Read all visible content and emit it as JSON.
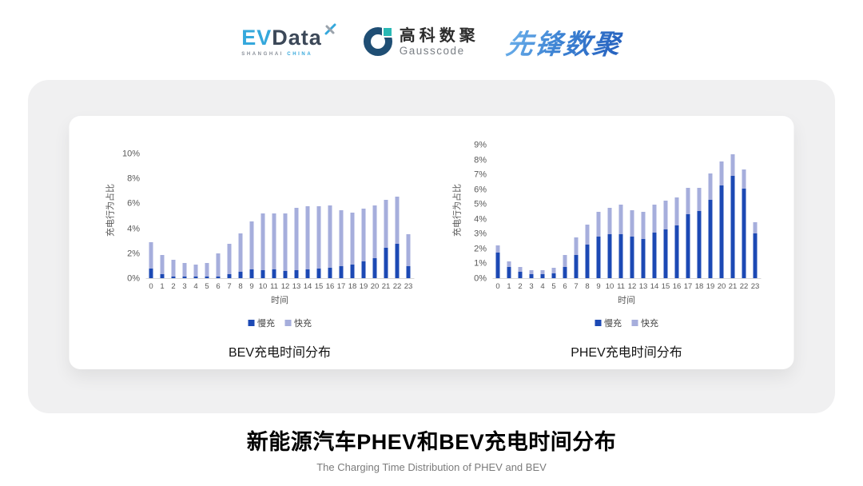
{
  "header": {
    "evdata": {
      "ev": "EV",
      "data": "Data",
      "sub_shanghai": "SHANGHAI ",
      "sub_china": "CHINA"
    },
    "gausscode": {
      "cn": "高科数聚",
      "en": "Gausscode"
    },
    "pioneer": {
      "text": "先锋数聚"
    }
  },
  "colors": {
    "slow_charge": "#1C49B4",
    "fast_charge": "#A6AEDC",
    "panel_background": "#F0F0F1",
    "axis_text": "#595959"
  },
  "chart_data": [
    {
      "type": "bar",
      "stacked": true,
      "title": "BEV充电时间分布",
      "xlabel": "时间",
      "ylabel": "充电行为占比",
      "ylim": [
        0,
        10
      ],
      "yticks": [
        "0%",
        "2%",
        "4%",
        "6%",
        "8%",
        "10%"
      ],
      "grid": false,
      "legend_position": "bottom",
      "categories": [
        "0",
        "1",
        "2",
        "3",
        "4",
        "5",
        "6",
        "7",
        "8",
        "9",
        "10",
        "11",
        "12",
        "13",
        "14",
        "15",
        "16",
        "17",
        "18",
        "19",
        "20",
        "21",
        "22",
        "23"
      ],
      "series": [
        {
          "name": "慢充",
          "color": "#1C49B4",
          "values": [
            0.75,
            0.35,
            0.15,
            0.1,
            0.1,
            0.1,
            0.15,
            0.35,
            0.5,
            0.7,
            0.65,
            0.7,
            0.6,
            0.65,
            0.7,
            0.75,
            0.85,
            1.0,
            1.1,
            1.35,
            1.6,
            2.45,
            2.75,
            1.0
          ]
        },
        {
          "name": "快充",
          "color": "#A6AEDC",
          "values": [
            2.15,
            1.55,
            1.35,
            1.1,
            1.0,
            1.1,
            1.85,
            2.45,
            3.1,
            3.9,
            4.55,
            4.55,
            4.65,
            5.0,
            5.1,
            5.05,
            5.0,
            4.5,
            4.2,
            4.25,
            4.3,
            3.9,
            3.8,
            2.55
          ]
        }
      ]
    },
    {
      "type": "bar",
      "stacked": true,
      "title": "PHEV充电时间分布",
      "xlabel": "时间",
      "ylabel": "充电行为占比",
      "ylim": [
        0,
        9
      ],
      "yticks": [
        "0%",
        "1%",
        "2%",
        "3%",
        "4%",
        "5%",
        "6%",
        "7%",
        "8%",
        "9%"
      ],
      "grid": false,
      "legend_position": "bottom",
      "categories": [
        "0",
        "1",
        "2",
        "3",
        "4",
        "5",
        "6",
        "7",
        "8",
        "9",
        "10",
        "11",
        "12",
        "13",
        "14",
        "15",
        "16",
        "17",
        "18",
        "19",
        "20",
        "21",
        "22",
        "23"
      ],
      "series": [
        {
          "name": "慢充",
          "color": "#1C49B4",
          "values": [
            1.75,
            0.75,
            0.45,
            0.25,
            0.25,
            0.3,
            0.75,
            1.6,
            2.3,
            2.8,
            3.0,
            3.0,
            2.8,
            2.65,
            3.1,
            3.3,
            3.6,
            4.35,
            4.55,
            5.3,
            6.3,
            6.95,
            6.05,
            3.05
          ]
        },
        {
          "name": "快充",
          "color": "#A6AEDC",
          "values": [
            0.5,
            0.4,
            0.3,
            0.3,
            0.3,
            0.4,
            0.85,
            1.15,
            1.35,
            1.7,
            1.75,
            2.0,
            1.8,
            1.85,
            1.9,
            1.95,
            1.9,
            1.8,
            1.6,
            1.8,
            1.6,
            1.45,
            1.3,
            0.75
          ]
        }
      ]
    }
  ],
  "footer": {
    "title": "新能源汽车PHEV和BEV充电时间分布",
    "subtitle": "The Charging Time Distribution of PHEV and BEV"
  }
}
